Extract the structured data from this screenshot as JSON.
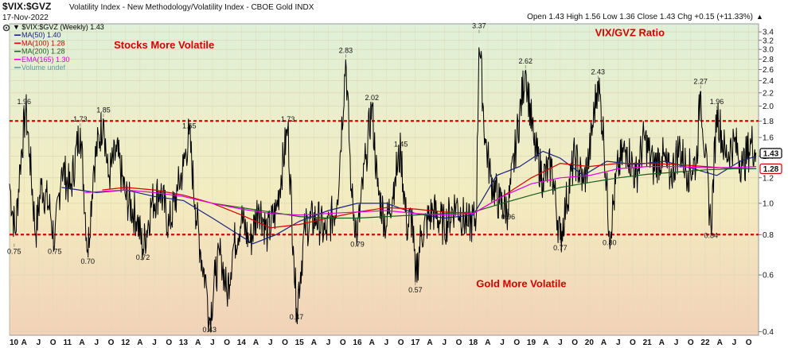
{
  "header": {
    "symbol": "$VIX:$GVZ",
    "description": "Volatility Index - New Methodology/Volatility Index - CBOE Gold INDX",
    "date": "17-Nov-2022",
    "ohlc": "Open 1.43  High 1.56  Low 1.36  Close 1.43  Chg +0.15 (+11.33%)",
    "ohlc_suffix": "▲",
    "gear_icon": "gear-icon"
  },
  "legend": [
    {
      "label": "▼ $VIX:$GVZ (Weekly) 1.43",
      "color": "#000000"
    },
    {
      "label": "MA(50) 1.40",
      "color": "#1a237e"
    },
    {
      "label": "MA(100) 1.28",
      "color": "#d50000"
    },
    {
      "label": "MA(200) 1.28",
      "color": "#1b5e20"
    },
    {
      "label": "EMA(165) 1.30",
      "color": "#e000e0"
    },
    {
      "label": "Volume undef",
      "color": "#5f9ea0"
    }
  ],
  "chart_data": {
    "type": "line",
    "title": "VIX/GVZ Ratio",
    "scale": "log",
    "ylim": [
      0.39,
      3.6
    ],
    "yticks": [
      0.4,
      0.6,
      0.8,
      1.0,
      1.2,
      1.4,
      1.6,
      1.8,
      2.0,
      2.2,
      2.4,
      2.6,
      2.8,
      3.0,
      3.2,
      3.4
    ],
    "xlim": [
      2010.0,
      2022.92
    ],
    "xticks": [
      {
        "t": 2010.0,
        "label": "10"
      },
      {
        "t": 2010.25,
        "label": "A"
      },
      {
        "t": 2010.5,
        "label": "J"
      },
      {
        "t": 2010.75,
        "label": "O"
      },
      {
        "t": 2011.0,
        "label": "11"
      },
      {
        "t": 2011.25,
        "label": "A"
      },
      {
        "t": 2011.5,
        "label": "J"
      },
      {
        "t": 2011.75,
        "label": "O"
      },
      {
        "t": 2012.0,
        "label": "12"
      },
      {
        "t": 2012.25,
        "label": "A"
      },
      {
        "t": 2012.5,
        "label": "J"
      },
      {
        "t": 2012.75,
        "label": "O"
      },
      {
        "t": 2013.0,
        "label": "13"
      },
      {
        "t": 2013.25,
        "label": "A"
      },
      {
        "t": 2013.5,
        "label": "J"
      },
      {
        "t": 2013.75,
        "label": "O"
      },
      {
        "t": 2014.0,
        "label": "14"
      },
      {
        "t": 2014.25,
        "label": "A"
      },
      {
        "t": 2014.5,
        "label": "J"
      },
      {
        "t": 2014.75,
        "label": "O"
      },
      {
        "t": 2015.0,
        "label": "15"
      },
      {
        "t": 2015.25,
        "label": "A"
      },
      {
        "t": 2015.5,
        "label": "J"
      },
      {
        "t": 2015.75,
        "label": "O"
      },
      {
        "t": 2016.0,
        "label": "16"
      },
      {
        "t": 2016.25,
        "label": "A"
      },
      {
        "t": 2016.5,
        "label": "J"
      },
      {
        "t": 2016.75,
        "label": "O"
      },
      {
        "t": 2017.0,
        "label": "17"
      },
      {
        "t": 2017.25,
        "label": "A"
      },
      {
        "t": 2017.5,
        "label": "J"
      },
      {
        "t": 2017.75,
        "label": "O"
      },
      {
        "t": 2018.0,
        "label": "18"
      },
      {
        "t": 2018.25,
        "label": "A"
      },
      {
        "t": 2018.5,
        "label": "J"
      },
      {
        "t": 2018.75,
        "label": "O"
      },
      {
        "t": 2019.0,
        "label": "19"
      },
      {
        "t": 2019.25,
        "label": "A"
      },
      {
        "t": 2019.5,
        "label": "J"
      },
      {
        "t": 2019.75,
        "label": "O"
      },
      {
        "t": 2020.0,
        "label": "20"
      },
      {
        "t": 2020.25,
        "label": "A"
      },
      {
        "t": 2020.5,
        "label": "J"
      },
      {
        "t": 2020.75,
        "label": "O"
      },
      {
        "t": 2021.0,
        "label": "21"
      },
      {
        "t": 2021.25,
        "label": "A"
      },
      {
        "t": 2021.5,
        "label": "J"
      },
      {
        "t": 2021.75,
        "label": "O"
      },
      {
        "t": 2022.0,
        "label": "22"
      },
      {
        "t": 2022.25,
        "label": "A"
      },
      {
        "t": 2022.5,
        "label": "J"
      },
      {
        "t": 2022.75,
        "label": "O"
      }
    ],
    "ref_lines": [
      {
        "y": 1.8,
        "color": "#e00000",
        "style": "dotted"
      },
      {
        "y": 0.8,
        "color": "#e00000",
        "style": "dotted"
      }
    ],
    "zone_labels": [
      {
        "text": "Stocks More Volatile",
        "t": 2011.8,
        "y": 3.02
      },
      {
        "text": "Gold More Volatile",
        "t": 2018.05,
        "y": 0.55
      },
      {
        "text": "VIX/GVZ Ratio",
        "t": 2020.1,
        "y": 3.3
      }
    ],
    "price_keys": [
      [
        2010.0,
        1.15
      ],
      [
        2010.1,
        0.8
      ],
      [
        2010.18,
        1.3
      ],
      [
        2010.28,
        1.96
      ],
      [
        2010.35,
        1.4
      ],
      [
        2010.45,
        0.8
      ],
      [
        2010.55,
        1.15
      ],
      [
        2010.7,
        0.95
      ],
      [
        2010.78,
        0.75
      ],
      [
        2010.9,
        1.3
      ],
      [
        2011.05,
        1.1
      ],
      [
        2011.22,
        1.73
      ],
      [
        2011.35,
        0.7
      ],
      [
        2011.45,
        1.3
      ],
      [
        2011.62,
        1.85
      ],
      [
        2011.7,
        1.2
      ],
      [
        2011.85,
        1.45
      ],
      [
        2012.0,
        1.05
      ],
      [
        2012.2,
        0.9
      ],
      [
        2012.3,
        0.72
      ],
      [
        2012.45,
        1.0
      ],
      [
        2012.6,
        1.1
      ],
      [
        2012.75,
        0.85
      ],
      [
        2012.9,
        1.1
      ],
      [
        2013.0,
        1.3
      ],
      [
        2013.1,
        1.65
      ],
      [
        2013.2,
        1.0
      ],
      [
        2013.3,
        0.7
      ],
      [
        2013.4,
        0.55
      ],
      [
        2013.45,
        0.43
      ],
      [
        2013.55,
        0.6
      ],
      [
        2013.65,
        0.7
      ],
      [
        2013.75,
        0.52
      ],
      [
        2013.85,
        0.72
      ],
      [
        2014.0,
        0.9
      ],
      [
        2014.15,
        0.75
      ],
      [
        2014.3,
        1.0
      ],
      [
        2014.45,
        0.8
      ],
      [
        2014.6,
        0.95
      ],
      [
        2014.8,
        1.73
      ],
      [
        2014.9,
        0.7
      ],
      [
        2014.95,
        0.47
      ],
      [
        2015.1,
        0.85
      ],
      [
        2015.3,
        0.9
      ],
      [
        2015.45,
        0.8
      ],
      [
        2015.65,
        1.0
      ],
      [
        2015.8,
        2.83
      ],
      [
        2015.9,
        1.05
      ],
      [
        2016.0,
        0.79
      ],
      [
        2016.15,
        1.4
      ],
      [
        2016.25,
        2.02
      ],
      [
        2016.35,
        1.1
      ],
      [
        2016.5,
        0.85
      ],
      [
        2016.65,
        1.2
      ],
      [
        2016.75,
        1.45
      ],
      [
        2016.85,
        0.85
      ],
      [
        2016.95,
        0.9
      ],
      [
        2017.0,
        0.57
      ],
      [
        2017.1,
        0.8
      ],
      [
        2017.3,
        0.95
      ],
      [
        2017.5,
        0.85
      ],
      [
        2017.7,
        1.0
      ],
      [
        2017.9,
        0.85
      ],
      [
        2018.05,
        0.9
      ],
      [
        2018.1,
        3.37
      ],
      [
        2018.2,
        1.6
      ],
      [
        2018.3,
        1.2
      ],
      [
        2018.45,
        1.0
      ],
      [
        2018.6,
        0.96
      ],
      [
        2018.75,
        1.6
      ],
      [
        2018.9,
        2.62
      ],
      [
        2019.05,
        1.5
      ],
      [
        2019.2,
        1.2
      ],
      [
        2019.35,
        1.3
      ],
      [
        2019.5,
        0.77
      ],
      [
        2019.6,
        1.0
      ],
      [
        2019.75,
        1.4
      ],
      [
        2019.9,
        1.15
      ],
      [
        2020.0,
        1.4
      ],
      [
        2020.15,
        2.43
      ],
      [
        2020.25,
        1.6
      ],
      [
        2020.35,
        0.8
      ],
      [
        2020.5,
        1.3
      ],
      [
        2020.65,
        1.5
      ],
      [
        2020.8,
        1.2
      ],
      [
        2020.95,
        1.6
      ],
      [
        2021.1,
        1.3
      ],
      [
        2021.25,
        1.4
      ],
      [
        2021.4,
        1.2
      ],
      [
        2021.55,
        1.5
      ],
      [
        2021.7,
        1.25
      ],
      [
        2021.85,
        1.35
      ],
      [
        2021.92,
        2.27
      ],
      [
        2022.0,
        1.4
      ],
      [
        2022.1,
        0.84
      ],
      [
        2022.2,
        1.96
      ],
      [
        2022.35,
        1.4
      ],
      [
        2022.5,
        1.55
      ],
      [
        2022.65,
        1.3
      ],
      [
        2022.8,
        1.55
      ],
      [
        2022.88,
        1.43
      ]
    ],
    "ma_series": [
      {
        "name": "MA(50)",
        "color": "#1a237e",
        "points": [
          [
            2010.9,
            1.12
          ],
          [
            2011.5,
            1.08
          ],
          [
            2012.0,
            1.1
          ],
          [
            2012.5,
            1.05
          ],
          [
            2013.0,
            1.02
          ],
          [
            2013.5,
            0.9
          ],
          [
            2013.95,
            0.8
          ],
          [
            2014.2,
            0.75
          ],
          [
            2014.6,
            0.8
          ],
          [
            2015.0,
            0.88
          ],
          [
            2015.5,
            0.95
          ],
          [
            2016.0,
            1.0
          ],
          [
            2016.5,
            1.0
          ],
          [
            2017.0,
            0.93
          ],
          [
            2017.5,
            0.9
          ],
          [
            2018.0,
            0.92
          ],
          [
            2018.4,
            1.22
          ],
          [
            2018.8,
            1.3
          ],
          [
            2019.2,
            1.45
          ],
          [
            2019.5,
            1.38
          ],
          [
            2019.9,
            1.22
          ],
          [
            2020.3,
            1.35
          ],
          [
            2020.8,
            1.32
          ],
          [
            2021.3,
            1.35
          ],
          [
            2021.8,
            1.28
          ],
          [
            2022.2,
            1.22
          ],
          [
            2022.6,
            1.35
          ],
          [
            2022.88,
            1.4
          ]
        ]
      },
      {
        "name": "MA(100)",
        "color": "#d50000",
        "points": [
          [
            2011.6,
            1.1
          ],
          [
            2012.0,
            1.12
          ],
          [
            2012.5,
            1.1
          ],
          [
            2013.0,
            1.06
          ],
          [
            2013.5,
            1.0
          ],
          [
            2014.0,
            0.92
          ],
          [
            2014.5,
            0.84
          ],
          [
            2015.0,
            0.86
          ],
          [
            2015.5,
            0.9
          ],
          [
            2016.0,
            0.94
          ],
          [
            2016.5,
            0.97
          ],
          [
            2017.0,
            0.96
          ],
          [
            2017.5,
            0.94
          ],
          [
            2018.0,
            0.93
          ],
          [
            2018.5,
            1.05
          ],
          [
            2019.0,
            1.2
          ],
          [
            2019.5,
            1.33
          ],
          [
            2020.0,
            1.3
          ],
          [
            2020.5,
            1.33
          ],
          [
            2021.0,
            1.33
          ],
          [
            2021.5,
            1.32
          ],
          [
            2022.0,
            1.3
          ],
          [
            2022.5,
            1.28
          ],
          [
            2022.88,
            1.28
          ]
        ]
      },
      {
        "name": "MA(200)",
        "color": "#1b5e20",
        "points": [
          [
            2013.5,
            1.0
          ],
          [
            2014.0,
            0.97
          ],
          [
            2014.5,
            0.94
          ],
          [
            2015.0,
            0.91
          ],
          [
            2015.5,
            0.9
          ],
          [
            2016.0,
            0.9
          ],
          [
            2016.5,
            0.91
          ],
          [
            2017.0,
            0.92
          ],
          [
            2017.5,
            0.93
          ],
          [
            2018.0,
            0.94
          ],
          [
            2018.5,
            1.0
          ],
          [
            2019.0,
            1.06
          ],
          [
            2019.5,
            1.12
          ],
          [
            2020.0,
            1.16
          ],
          [
            2020.5,
            1.2
          ],
          [
            2021.0,
            1.23
          ],
          [
            2021.5,
            1.25
          ],
          [
            2022.0,
            1.27
          ],
          [
            2022.5,
            1.28
          ],
          [
            2022.88,
            1.28
          ]
        ]
      },
      {
        "name": "EMA(165)",
        "color": "#e000e0",
        "points": [
          [
            2011.3,
            1.08
          ],
          [
            2012.0,
            1.1
          ],
          [
            2012.5,
            1.08
          ],
          [
            2013.0,
            1.05
          ],
          [
            2013.5,
            1.0
          ],
          [
            2014.0,
            0.96
          ],
          [
            2014.5,
            0.93
          ],
          [
            2015.0,
            0.92
          ],
          [
            2015.5,
            0.93
          ],
          [
            2016.0,
            0.94
          ],
          [
            2016.5,
            0.95
          ],
          [
            2017.0,
            0.93
          ],
          [
            2017.5,
            0.92
          ],
          [
            2018.0,
            0.93
          ],
          [
            2018.5,
            1.05
          ],
          [
            2019.0,
            1.15
          ],
          [
            2019.5,
            1.2
          ],
          [
            2020.0,
            1.22
          ],
          [
            2020.5,
            1.28
          ],
          [
            2021.0,
            1.3
          ],
          [
            2021.5,
            1.3
          ],
          [
            2022.0,
            1.29
          ],
          [
            2022.5,
            1.29
          ],
          [
            2022.88,
            1.3
          ]
        ]
      }
    ],
    "point_labels": [
      {
        "t": 2010.25,
        "v": 1.96,
        "text": "1.96",
        "pos": "above"
      },
      {
        "t": 2011.22,
        "v": 1.73,
        "text": "1.73",
        "pos": "above"
      },
      {
        "t": 2011.62,
        "v": 1.85,
        "text": "1.85",
        "pos": "above"
      },
      {
        "t": 2013.1,
        "v": 1.65,
        "text": "1.65",
        "pos": "above"
      },
      {
        "t": 2014.8,
        "v": 1.73,
        "text": "1.73",
        "pos": "above"
      },
      {
        "t": 2015.8,
        "v": 2.83,
        "text": "2.83",
        "pos": "above"
      },
      {
        "t": 2016.25,
        "v": 2.02,
        "text": "2.02",
        "pos": "above"
      },
      {
        "t": 2016.75,
        "v": 1.45,
        "text": "1.45",
        "pos": "above"
      },
      {
        "t": 2018.1,
        "v": 3.37,
        "text": "3.37",
        "pos": "above"
      },
      {
        "t": 2018.9,
        "v": 2.62,
        "text": "2.62",
        "pos": "above"
      },
      {
        "t": 2020.15,
        "v": 2.43,
        "text": "2.43",
        "pos": "above"
      },
      {
        "t": 2021.92,
        "v": 2.27,
        "text": "2.27",
        "pos": "above"
      },
      {
        "t": 2022.2,
        "v": 1.96,
        "text": "1.96",
        "pos": "above"
      },
      {
        "t": 2010.08,
        "v": 0.75,
        "text": "0.75",
        "pos": "below"
      },
      {
        "t": 2010.78,
        "v": 0.75,
        "text": "0.75",
        "pos": "below"
      },
      {
        "t": 2011.35,
        "v": 0.7,
        "text": "0.70",
        "pos": "below"
      },
      {
        "t": 2012.3,
        "v": 0.72,
        "text": "0.72",
        "pos": "below"
      },
      {
        "t": 2013.45,
        "v": 0.43,
        "text": "0.43",
        "pos": "below"
      },
      {
        "t": 2014.95,
        "v": 0.47,
        "text": "0.47",
        "pos": "below"
      },
      {
        "t": 2016.0,
        "v": 0.79,
        "text": "0.79",
        "pos": "below"
      },
      {
        "t": 2017.0,
        "v": 0.57,
        "text": "0.57",
        "pos": "below"
      },
      {
        "t": 2018.6,
        "v": 0.96,
        "text": "0.96",
        "pos": "below"
      },
      {
        "t": 2019.5,
        "v": 0.77,
        "text": "0.77",
        "pos": "below"
      },
      {
        "t": 2020.35,
        "v": 0.8,
        "text": "0.80",
        "pos": "below"
      },
      {
        "t": 2022.1,
        "v": 0.84,
        "text": "0.84",
        "pos": "below"
      }
    ],
    "last_value_tags": [
      {
        "v": 1.43,
        "text": "1.43",
        "color": "#000000"
      },
      {
        "v": 1.28,
        "text": "1.28",
        "color": "#d50000"
      }
    ]
  }
}
